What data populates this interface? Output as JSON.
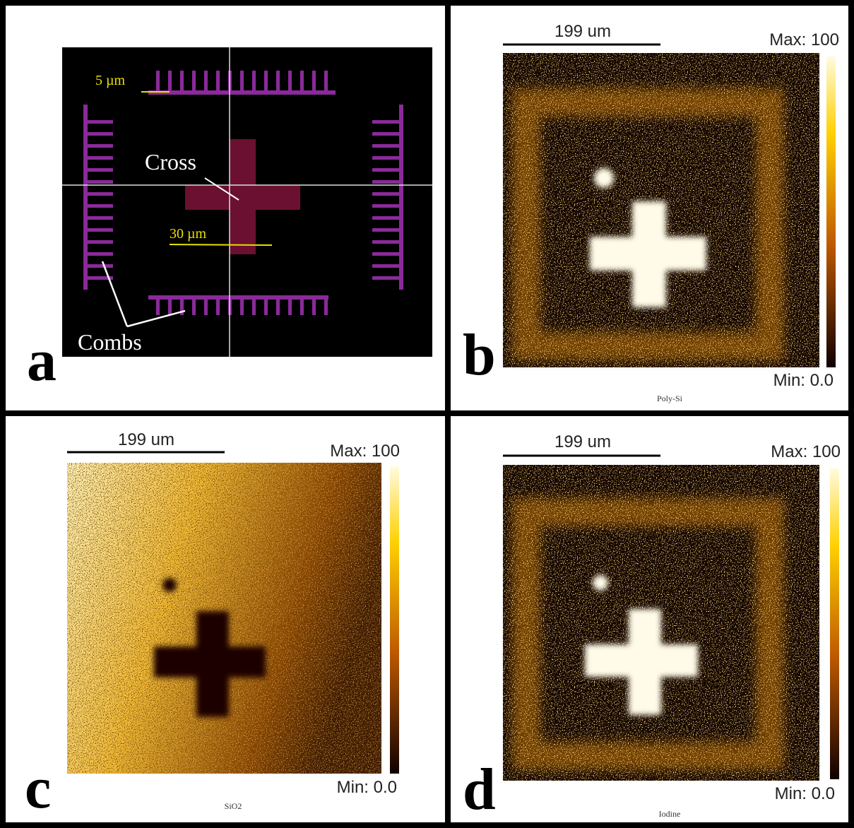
{
  "panels": [
    {
      "label": "a",
      "annotations": {
        "small_width": "5 µm",
        "cross": "Cross",
        "cross_width": "30 µm",
        "combs": "Combs"
      }
    },
    {
      "label": "b",
      "scale_bar": "199 um",
      "max": "Max: 100",
      "min": "Min: 0.0",
      "caption": "Poly-Si"
    },
    {
      "label": "c",
      "scale_bar": "199 um",
      "max": "Max: 100",
      "min": "Min: 0.0",
      "caption": "SiO2"
    },
    {
      "label": "d",
      "scale_bar": "199 um",
      "max": "Max: 100",
      "min": "Min: 0.0",
      "caption": "Iodine"
    }
  ]
}
